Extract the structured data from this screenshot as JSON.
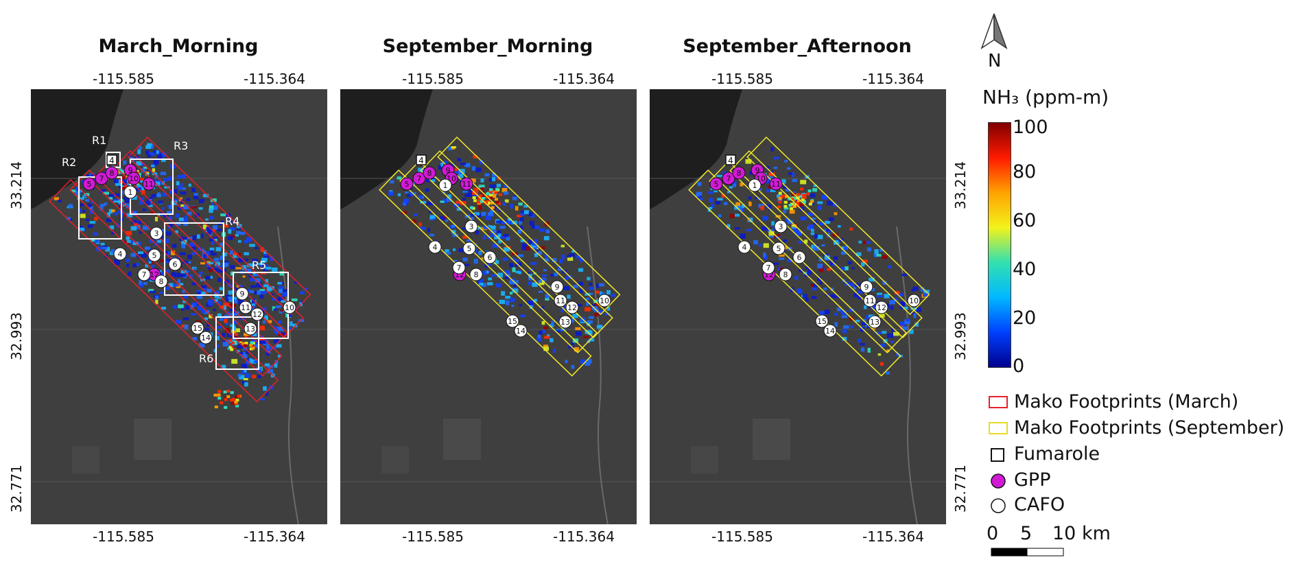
{
  "panels": [
    {
      "title": "March_Morning",
      "footprint_color": "#e8202a",
      "show_region_boxes": true
    },
    {
      "title": "September_Morning",
      "footprint_color": "#f2ea28",
      "show_region_boxes": false
    },
    {
      "title": "September_Afternoon",
      "footprint_color": "#f2ea28",
      "show_region_boxes": false
    }
  ],
  "axes": {
    "lon_ticks": [
      "-115.585",
      "-115.364"
    ],
    "lat_ticks": [
      "33.214",
      "32.993",
      "32.771"
    ]
  },
  "north_arrow": {
    "label": "N"
  },
  "colorbar": {
    "title": "NH₃ (ppm-m)",
    "ticks": [
      "100",
      "80",
      "60",
      "40",
      "20",
      "0"
    ],
    "colors": [
      "#7f0000",
      "#ff1a00",
      "#ffa200",
      "#f2f21a",
      "#33e0b0",
      "#00b8ff",
      "#0040ff",
      "#00008f"
    ]
  },
  "legend": {
    "march_footprint": "Mako Footprints (March)",
    "september_footprint": "Mako Footprints (September)",
    "fumarole": "Fumarole",
    "gpp": "GPP",
    "cafo": "CAFO"
  },
  "scale_bar": {
    "labels": [
      "0",
      "5",
      "10 km"
    ]
  },
  "regions": [
    "R1",
    "R2",
    "R3",
    "R4",
    "R5",
    "R6"
  ],
  "markers": {
    "fumarole": [
      "4"
    ],
    "gpp": [
      "5",
      "7",
      "8",
      "9",
      "10",
      "11",
      "12"
    ],
    "cafo": [
      "1",
      "3",
      "4",
      "5",
      "6",
      "7",
      "8",
      "9",
      "10",
      "11",
      "12",
      "13",
      "14",
      "15"
    ]
  },
  "colors": {
    "map_bg": "#3f3f3f",
    "water": "#1e1e1e",
    "gpp": "#d21ad6",
    "cafo": "#ffffff"
  }
}
